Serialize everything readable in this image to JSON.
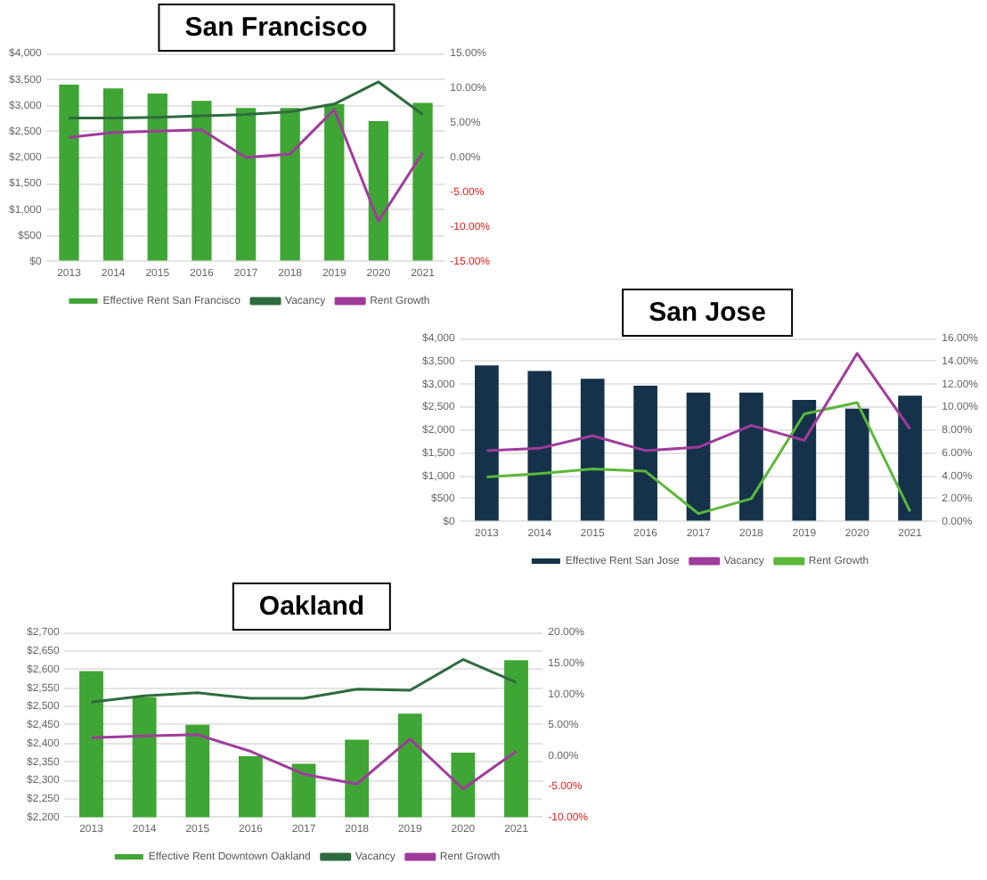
{
  "chart_data": [
    {
      "type": "bar",
      "title": "San Francisco",
      "categories": [
        "2013",
        "2014",
        "2015",
        "2016",
        "2017",
        "2018",
        "2019",
        "2020",
        "2021"
      ],
      "series": [
        {
          "name": "Effective Rent San Francisco",
          "color": "#3fa535",
          "values": [
            3400,
            3330,
            3230,
            3090,
            2950,
            2950,
            3030,
            2700,
            3050
          ]
        },
        {
          "name": "Vacancy",
          "type": "line",
          "axis": "y2",
          "color": "#2e6b3f",
          "values": [
            5.7,
            5.7,
            5.8,
            6.0,
            6.2,
            6.6,
            7.7,
            10.9,
            6.2
          ]
        },
        {
          "name": "Rent Growth",
          "type": "line",
          "axis": "y2",
          "color": "#a03c9c",
          "values": [
            2.9,
            3.6,
            3.8,
            4.0,
            0.0,
            0.5,
            6.9,
            -9.2,
            0.7
          ]
        }
      ],
      "ylim": [
        0,
        4000
      ],
      "yticks": [
        {
          "value": 0,
          "label": "$0"
        },
        {
          "value": 500,
          "label": "$500"
        },
        {
          "value": 1000,
          "label": "$1,000"
        },
        {
          "value": 1500,
          "label": "$1,500"
        },
        {
          "value": 2000,
          "label": "$2,000"
        },
        {
          "value": 2500,
          "label": "$2,500"
        },
        {
          "value": 3000,
          "label": "$3,000"
        },
        {
          "value": 3500,
          "label": "$3,500"
        },
        {
          "value": 4000,
          "label": "$4,000"
        }
      ],
      "y2lim": [
        -15,
        15
      ],
      "y2ticks": [
        {
          "value": -15,
          "label": "-15.00%"
        },
        {
          "value": -10,
          "label": "-10.00%"
        },
        {
          "value": -5,
          "label": "-5.00%"
        },
        {
          "value": 0,
          "label": "0.00%"
        },
        {
          "value": 5,
          "label": "5.00%"
        },
        {
          "value": 10,
          "label": "10.00%"
        },
        {
          "value": 15,
          "label": "15.00%"
        }
      ],
      "grid": "y",
      "legend": "bottom"
    },
    {
      "type": "bar",
      "title": "San Jose",
      "categories": [
        "2013",
        "2014",
        "2015",
        "2016",
        "2017",
        "2018",
        "2019",
        "2020",
        "2021"
      ],
      "series": [
        {
          "name": "Effective Rent San Jose",
          "color": "#15324a",
          "values": [
            3410,
            3290,
            3120,
            2970,
            2820,
            2820,
            2660,
            2470,
            2750
          ]
        },
        {
          "name": "Vacancy",
          "type": "line",
          "axis": "y2",
          "color": "#a03c9c",
          "values": [
            6.2,
            6.4,
            7.5,
            6.2,
            6.5,
            8.4,
            7.1,
            14.7,
            8.1
          ]
        },
        {
          "name": "Rent Growth",
          "type": "line",
          "axis": "y2",
          "color": "#5cb83a",
          "values": [
            3.9,
            4.2,
            4.6,
            4.4,
            0.7,
            2.0,
            9.4,
            10.4,
            0.9
          ]
        }
      ],
      "ylim": [
        0,
        4000
      ],
      "yticks": [
        {
          "value": 0,
          "label": "$0"
        },
        {
          "value": 500,
          "label": "$500"
        },
        {
          "value": 1000,
          "label": "$1,000"
        },
        {
          "value": 1500,
          "label": "$1,500"
        },
        {
          "value": 2000,
          "label": "$2,000"
        },
        {
          "value": 2500,
          "label": "$2,500"
        },
        {
          "value": 3000,
          "label": "$3,000"
        },
        {
          "value": 3500,
          "label": "$3,500"
        },
        {
          "value": 4000,
          "label": "$4,000"
        }
      ],
      "y2lim": [
        0,
        16
      ],
      "y2ticks": [
        {
          "value": 0,
          "label": "0.00%"
        },
        {
          "value": 2,
          "label": "2.00%"
        },
        {
          "value": 4,
          "label": "4.00%"
        },
        {
          "value": 6,
          "label": "6.00%"
        },
        {
          "value": 8,
          "label": "8.00%"
        },
        {
          "value": 10,
          "label": "10.00%"
        },
        {
          "value": 12,
          "label": "12.00%"
        },
        {
          "value": 14,
          "label": "14.00%"
        },
        {
          "value": 16,
          "label": "16.00%"
        }
      ],
      "grid": "y",
      "legend": "bottom"
    },
    {
      "type": "bar",
      "title": "Oakland",
      "categories": [
        "2013",
        "2014",
        "2015",
        "2016",
        "2017",
        "2018",
        "2019",
        "2020",
        "2021"
      ],
      "series": [
        {
          "name": "Effective Rent Downtown Oakland",
          "color": "#3fa535",
          "values": [
            2595,
            2525,
            2450,
            2365,
            2345,
            2410,
            2480,
            2375,
            2625
          ]
        },
        {
          "name": "Vacancy",
          "type": "line",
          "axis": "y2",
          "color": "#2e6b3f",
          "values": [
            8.7,
            9.7,
            10.2,
            9.3,
            9.3,
            10.8,
            10.6,
            15.6,
            11.9
          ]
        },
        {
          "name": "Rent Growth",
          "type": "line",
          "axis": "y2",
          "color": "#a03c9c",
          "values": [
            2.9,
            3.2,
            3.4,
            0.7,
            -3.0,
            -4.6,
            2.7,
            -5.4,
            0.7
          ]
        }
      ],
      "ylim": [
        2200,
        2700
      ],
      "yticks": [
        {
          "value": 2200,
          "label": "$2,200"
        },
        {
          "value": 2250,
          "label": "$2,250"
        },
        {
          "value": 2300,
          "label": "$2,300"
        },
        {
          "value": 2350,
          "label": "$2,350"
        },
        {
          "value": 2400,
          "label": "$2,400"
        },
        {
          "value": 2450,
          "label": "$2,450"
        },
        {
          "value": 2500,
          "label": "$2,500"
        },
        {
          "value": 2550,
          "label": "$2,550"
        },
        {
          "value": 2600,
          "label": "$2,600"
        },
        {
          "value": 2650,
          "label": "$2,650"
        },
        {
          "value": 2700,
          "label": "$2,700"
        }
      ],
      "y2lim": [
        -10,
        20
      ],
      "y2ticks": [
        {
          "value": -10,
          "label": "-10.00%"
        },
        {
          "value": -5,
          "label": "-5.00%"
        },
        {
          "value": 0,
          "label": "0.00%"
        },
        {
          "value": 5,
          "label": "5.00%"
        },
        {
          "value": 10,
          "label": "10.00%"
        },
        {
          "value": 15,
          "label": "15.00%"
        },
        {
          "value": 20,
          "label": "20.00%"
        }
      ],
      "grid": "y",
      "legend": "bottom"
    }
  ]
}
